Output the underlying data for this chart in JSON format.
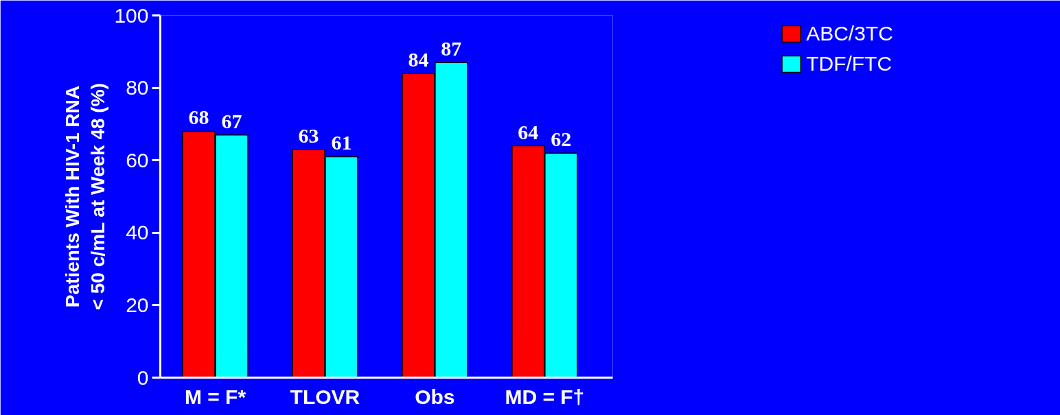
{
  "chart_data": {
    "type": "bar",
    "ylabel": "Patients With HIV-1 RNA\n< 50 c/mL at Week 48 (%)",
    "categories": [
      "M = F*",
      "TLOVR",
      "Obs",
      "MD = F†"
    ],
    "series": [
      {
        "name": "ABC/3TC",
        "color": "#ff0000",
        "values": [
          68,
          63,
          84,
          64
        ]
      },
      {
        "name": "TDF/FTC",
        "color": "#00ffff",
        "values": [
          67,
          61,
          87,
          62
        ]
      }
    ],
    "ylim": [
      0,
      100
    ],
    "yticks": [
      0,
      20,
      40,
      60,
      80,
      100
    ],
    "data_labels": true,
    "grid": false,
    "legend": "top right"
  }
}
